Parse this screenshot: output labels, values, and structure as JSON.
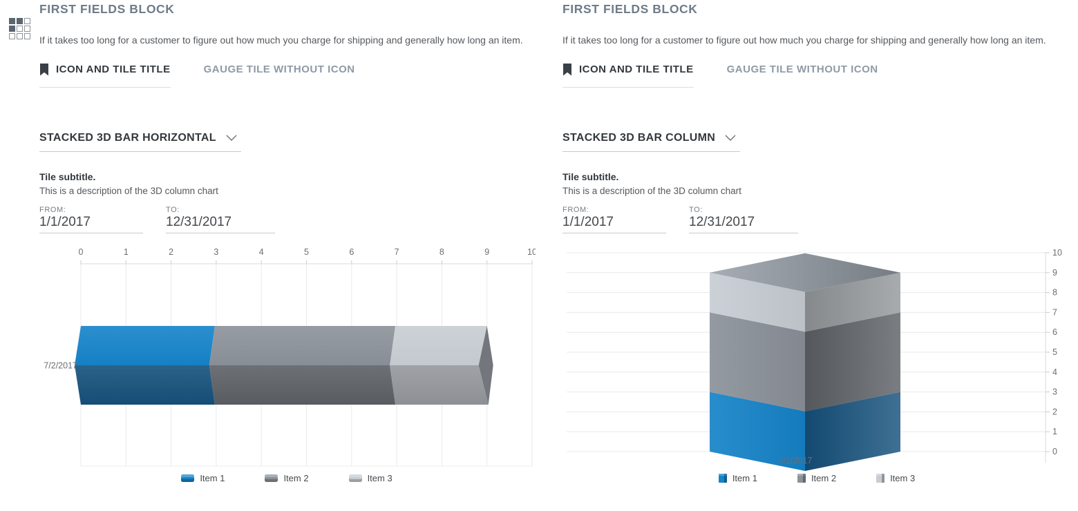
{
  "panels": [
    {
      "title": "FIRST FIELDS BLOCK",
      "description": "If it takes too long for a customer to figure out how much you charge for shipping and generally how long an item.",
      "tabs": [
        {
          "label": "ICON AND TILE TITLE",
          "active": true
        },
        {
          "label": "GAUGE TILE WITHOUT ICON",
          "active": false
        }
      ],
      "chart_selector": "STACKED 3D BAR HORIZONTAL",
      "tile_subtitle": "Tile subtitle.",
      "tile_description": "This is a description of the 3D column chart",
      "from_label": "FROM:",
      "from_value": "1/1/2017",
      "to_label": "TO:",
      "to_value": "12/31/2017"
    },
    {
      "title": "FIRST FIELDS BLOCK",
      "description": "If it takes too long for a customer to figure out how much you charge for shipping and generally how long an item.",
      "tabs": [
        {
          "label": "ICON AND TILE TITLE",
          "active": true
        },
        {
          "label": "GAUGE TILE WITHOUT ICON",
          "active": false
        }
      ],
      "chart_selector": "STACKED 3D BAR COLUMN",
      "tile_subtitle": "Tile subtitle.",
      "tile_description": "This is a description of the 3D column chart",
      "from_label": "FROM:",
      "from_value": "1/1/2017",
      "to_label": "TO:",
      "to_value": "12/31/2017"
    }
  ],
  "chart_data": [
    {
      "type": "bar",
      "style": "stacked-3d",
      "orientation": "horizontal",
      "title": "STACKED 3D BAR HORIZONTAL",
      "categories": [
        "7/2/2017"
      ],
      "series": [
        {
          "name": "Item 1",
          "values": [
            3
          ],
          "color": "#1583c8",
          "color_dark": "#15517c"
        },
        {
          "name": "Item 2",
          "values": [
            4
          ],
          "color": "#8b9199",
          "color_dark": "#5d6166"
        },
        {
          "name": "Item 3",
          "values": [
            2
          ],
          "color": "#c7cdd3",
          "color_dark": "#94989c"
        }
      ],
      "value_axis": {
        "min": 0,
        "max": 10,
        "ticks": [
          0,
          1,
          2,
          3,
          4,
          5,
          6,
          7,
          8,
          9,
          10
        ],
        "position": "top"
      },
      "grid": true,
      "legend_position": "bottom"
    },
    {
      "type": "bar",
      "style": "stacked-3d",
      "orientation": "vertical",
      "title": "STACKED 3D BAR COLUMN",
      "categories": [
        "7/2/2017"
      ],
      "series": [
        {
          "name": "Item 1",
          "values": [
            3
          ],
          "color": "#1583c8",
          "color_dark": "#15517c"
        },
        {
          "name": "Item 2",
          "values": [
            4
          ],
          "color": "#8b9199",
          "color_dark": "#5d6166"
        },
        {
          "name": "Item 3",
          "values": [
            2
          ],
          "color": "#c7cdd3",
          "color_dark": "#94989c"
        }
      ],
      "value_axis": {
        "min": 0,
        "max": 10,
        "ticks": [
          0,
          1,
          2,
          3,
          4,
          5,
          6,
          7,
          8,
          9,
          10
        ],
        "position": "right"
      },
      "grid": true,
      "legend_position": "bottom"
    }
  ],
  "chart_colors": {
    "grid_line": "#e7e9eb",
    "axis_line": "#d8dadc",
    "tick_mark": "#c9cbcd",
    "axis_text": "#6a6f74",
    "category_text": "#4d5156",
    "end_cap": "#73777d",
    "column_top_from": "#a7adb4",
    "column_top_to": "#767c83"
  }
}
